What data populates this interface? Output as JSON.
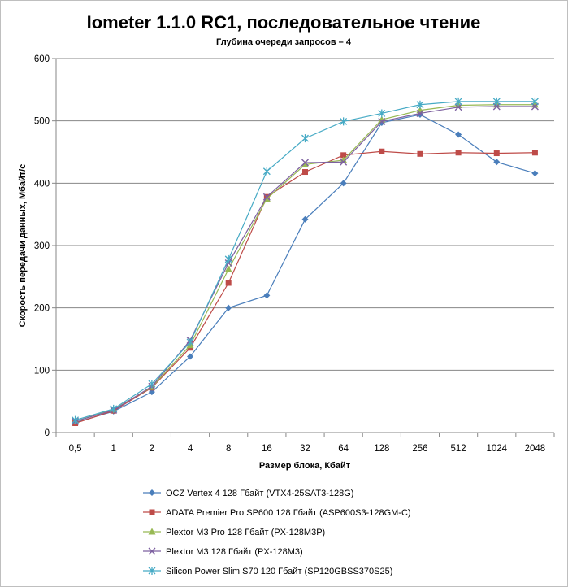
{
  "chart_data": {
    "type": "line",
    "title": "Iometer 1.1.0 RC1, последовательное чтение",
    "subtitle": "Глубина очереди запросов – 4",
    "xlabel": "Размер блока, Кбайт",
    "ylabel": "Скорость передачи данных, Мбайт/с",
    "categories": [
      "0,5",
      "1",
      "2",
      "4",
      "8",
      "16",
      "32",
      "64",
      "128",
      "256",
      "512",
      "1024",
      "2048"
    ],
    "ylim": [
      0,
      600
    ],
    "yticks": [
      0,
      100,
      200,
      300,
      400,
      500,
      600
    ],
    "grid": "horizontal",
    "legend_position": "bottom",
    "series": [
      {
        "name": "OCZ Vertex  4 128 Гбайт (VTX4-25SAT3-128G)",
        "color": "#4a7ebb",
        "marker": "diamond",
        "values": [
          16,
          34,
          65,
          122,
          200,
          220,
          342,
          400,
          497,
          510,
          478,
          434,
          416
        ]
      },
      {
        "name": "ADATA  Premier Pro SP600 128 Гбайт (ASP600S3-128GM-C)",
        "color": "#be4b48",
        "marker": "square",
        "values": [
          15,
          35,
          72,
          136,
          240,
          378,
          418,
          445,
          451,
          447,
          449,
          448,
          449
        ]
      },
      {
        "name": "Plextor M3 Pro 128 Гбайт (PX-128M3P)",
        "color": "#98b954",
        "marker": "triangle",
        "values": [
          18,
          37,
          73,
          140,
          262,
          375,
          430,
          437,
          502,
          517,
          525,
          526,
          526
        ]
      },
      {
        "name": "Plextor M3 128 Гбайт (PX-128M3)",
        "color": "#7d60a0",
        "marker": "x",
        "values": [
          18,
          36,
          74,
          148,
          272,
          378,
          433,
          434,
          499,
          512,
          522,
          523,
          523
        ]
      },
      {
        "name": "Silicon Power Slim S70 120 Гбайт (SP120GBSS370S25)",
        "color": "#46aac5",
        "marker": "star",
        "values": [
          20,
          38,
          78,
          145,
          278,
          419,
          472,
          499,
          512,
          526,
          531,
          531,
          531
        ]
      }
    ]
  }
}
